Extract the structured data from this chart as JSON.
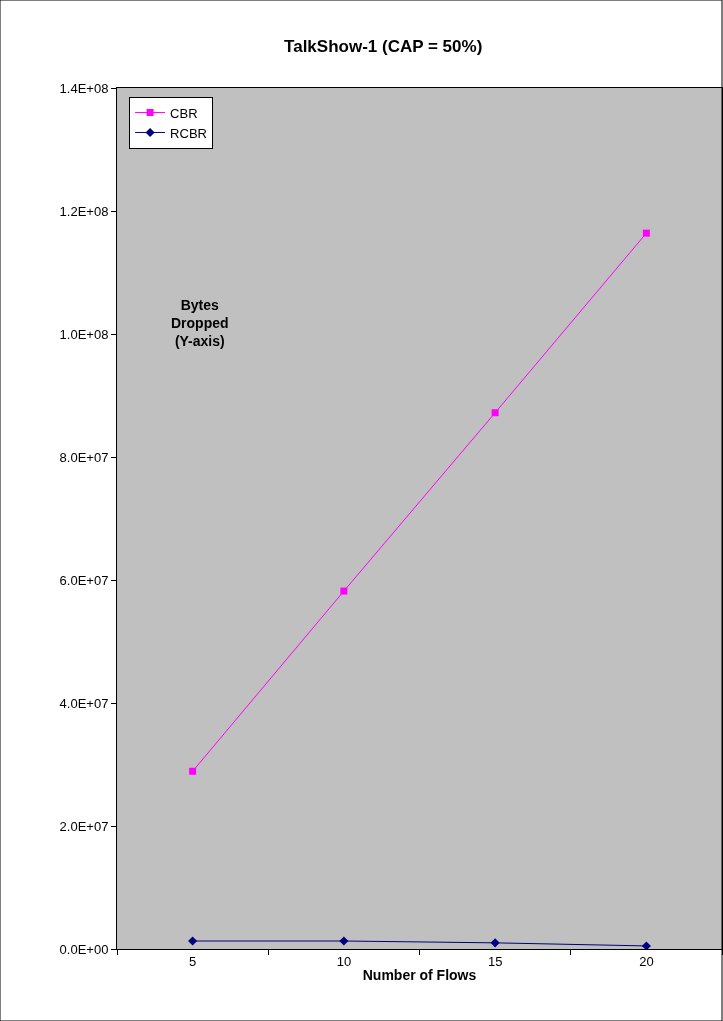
{
  "chart_data": {
    "type": "line",
    "title": "TalkShow-1 (CAP = 50%)",
    "xlabel": "Number of Flows",
    "categories": [
      "5",
      "10",
      "15",
      "20"
    ],
    "series": [
      {
        "name": "CBR",
        "color": "#ff00ff",
        "marker": "square",
        "values": [
          28900000,
          58200000,
          87200000,
          116400000
        ]
      },
      {
        "name": "RCBR",
        "color": "#000080",
        "marker": "diamond",
        "values": [
          1300000,
          1300000,
          1000000,
          500000
        ]
      }
    ],
    "ylim": [
      0,
      140000000
    ],
    "yticks": [
      {
        "value": 0,
        "label": "0.0E+00"
      },
      {
        "value": 20000000,
        "label": "2.0E+07"
      },
      {
        "value": 40000000,
        "label": "4.0E+07"
      },
      {
        "value": 60000000,
        "label": "6.0E+07"
      },
      {
        "value": 80000000,
        "label": "8.0E+07"
      },
      {
        "value": 100000000,
        "label": "1.0E+08"
      },
      {
        "value": 120000000,
        "label": "1.2E+08"
      },
      {
        "value": 140000000,
        "label": "1.4E+08"
      }
    ],
    "annotations": [
      "Bytes\nDropped\n(Y-axis)"
    ],
    "grid": false,
    "legend": "top left",
    "line_style": "solid"
  }
}
